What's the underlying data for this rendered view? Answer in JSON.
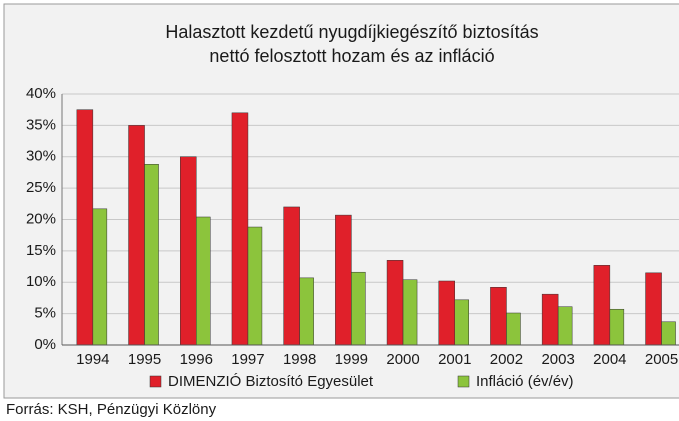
{
  "chart_data": {
    "type": "bar",
    "title": [
      "Halasztott kezdetű nyugdíjkiegészítő biztosítás",
      "nettó felosztott hozam és az infláció"
    ],
    "categories": [
      "1994",
      "1995",
      "1996",
      "1997",
      "1998",
      "1999",
      "2000",
      "2001",
      "2002",
      "2003",
      "2004",
      "2005"
    ],
    "series": [
      {
        "name": "DIMENZIÓ Biztosító Egyesület",
        "color": "#e0202a",
        "values": [
          37.5,
          35,
          30,
          37,
          22,
          20.7,
          13.5,
          10.2,
          9.2,
          8.1,
          12.7,
          11.5
        ]
      },
      {
        "name": "Infláció (év/év)",
        "color": "#8cc43c",
        "values": [
          21.7,
          28.8,
          20.4,
          18.8,
          10.7,
          11.6,
          10.4,
          7.2,
          5.1,
          6.1,
          5.7,
          3.7
        ]
      }
    ],
    "ylim": [
      0,
      40
    ],
    "yticks": [
      {
        "value": 0,
        "label": "0%"
      },
      {
        "value": 5,
        "label": "5%"
      },
      {
        "value": 10,
        "label": "10%"
      },
      {
        "value": 15,
        "label": "15%"
      },
      {
        "value": 20,
        "label": "20%"
      },
      {
        "value": 25,
        "label": "25%"
      },
      {
        "value": 30,
        "label": "30%"
      },
      {
        "value": 35,
        "label": "35%"
      },
      {
        "value": 40,
        "label": "40%"
      }
    ],
    "grid": true,
    "source": "Forrás: KSH, Pénzügyi Közlöny"
  }
}
